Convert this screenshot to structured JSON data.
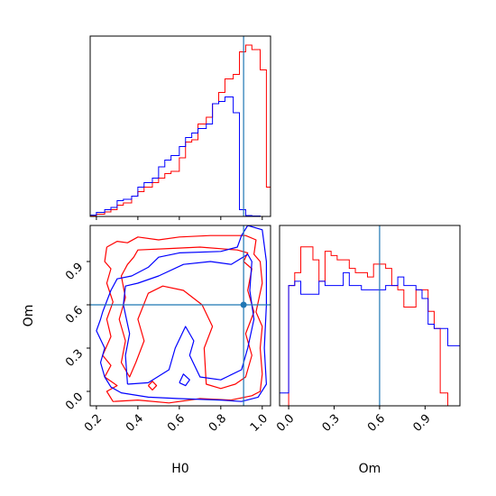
{
  "chart_data": {
    "type": "corner",
    "parameters": [
      "H0",
      "Om"
    ],
    "truth": {
      "H0": 0.91,
      "Om": 0.6
    },
    "colors": {
      "red": "#ff0000",
      "blue": "#0000ff",
      "truth": "#1f77b4"
    },
    "h0_hist": {
      "xlim": [
        0.17,
        1.04
      ],
      "xticks": [
        0.2,
        0.4,
        0.6,
        0.8,
        1.0
      ],
      "xticklabels": [
        "0.2",
        "0.4",
        "0.6",
        "0.8",
        "1.0"
      ],
      "bins": [
        0.17,
        0.2,
        0.24,
        0.27,
        0.3,
        0.33,
        0.37,
        0.4,
        0.43,
        0.47,
        0.5,
        0.53,
        0.56,
        0.6,
        0.63,
        0.66,
        0.69,
        0.73,
        0.76,
        0.79,
        0.82,
        0.86,
        0.89,
        0.92,
        0.95,
        0.99,
        1.02,
        1.04
      ],
      "series": [
        {
          "color": "red",
          "values": [
            0.2,
            0.5,
            1.0,
            1.5,
            2.5,
            3.0,
            4.5,
            5.5,
            6.5,
            7.5,
            8.5,
            9.5,
            10.0,
            13.0,
            16.5,
            17.0,
            20.5,
            22.0,
            25.0,
            27.5,
            30.5,
            31.5,
            36.5,
            38.0,
            37.0,
            32.5,
            6.5
          ]
        },
        {
          "color": "blue",
          "values": [
            0.3,
            0.9,
            1.5,
            2.0,
            3.5,
            3.8,
            4.5,
            6.5,
            7.5,
            8.5,
            11.0,
            12.5,
            13.5,
            15.5,
            17.5,
            18.5,
            19.5,
            20.5,
            25.0,
            25.5,
            26.5,
            23.0,
            1.5,
            0.2,
            0.1,
            0.0,
            0.0
          ]
        }
      ]
    },
    "om_hist": {
      "xlim": [
        -0.06,
        1.13
      ],
      "xticks": [
        0.0,
        0.3,
        0.6,
        0.9
      ],
      "xticklabels": [
        "0.0",
        "0.3",
        "0.6",
        "0.9"
      ],
      "bins": [
        -0.06,
        0.0,
        0.04,
        0.08,
        0.12,
        0.16,
        0.2,
        0.24,
        0.28,
        0.32,
        0.36,
        0.4,
        0.44,
        0.48,
        0.52,
        0.56,
        0.6,
        0.64,
        0.68,
        0.72,
        0.76,
        0.8,
        0.84,
        0.88,
        0.92,
        0.96,
        1.0,
        1.05,
        1.13
      ],
      "series": [
        {
          "color": "red",
          "values": [
            0,
            28,
            31,
            37,
            37,
            34,
            29,
            36,
            35,
            34,
            34,
            32,
            31,
            31,
            30,
            33,
            33,
            32,
            28,
            27,
            23,
            23,
            27,
            27,
            22,
            18,
            3,
            0
          ]
        },
        {
          "color": "blue",
          "values": [
            3,
            28,
            29,
            26,
            26,
            26,
            29,
            28,
            28,
            28,
            31,
            28,
            28,
            27,
            27,
            27,
            27,
            28,
            28,
            30,
            28,
            28,
            27,
            25,
            19,
            18,
            18,
            14
          ]
        }
      ]
    },
    "joint": {
      "xlabel": "H0",
      "ylabel": "Om",
      "xlim": [
        0.17,
        1.04
      ],
      "ylim": [
        -0.1,
        1.15
      ],
      "xticks": [
        0.2,
        0.4,
        0.6,
        0.8,
        1.0
      ],
      "xticklabels": [
        "0.2",
        "0.4",
        "0.6",
        "0.8",
        "1.0"
      ],
      "yticks": [
        0.0,
        0.3,
        0.6,
        0.9
      ],
      "yticklabels": [
        "0.0",
        "0.3",
        "0.6",
        "0.9"
      ],
      "contours": [
        {
          "color": "red",
          "points": [
            [
              0.25,
              1.0
            ],
            [
              0.3,
              1.04
            ],
            [
              0.35,
              1.03
            ],
            [
              0.4,
              1.07
            ],
            [
              0.5,
              1.05
            ],
            [
              0.6,
              1.07
            ],
            [
              0.75,
              1.08
            ],
            [
              0.92,
              1.08
            ],
            [
              0.97,
              1.05
            ],
            [
              0.96,
              0.95
            ],
            [
              0.99,
              0.9
            ],
            [
              1.0,
              0.75
            ],
            [
              0.97,
              0.55
            ],
            [
              1.0,
              0.45
            ],
            [
              0.99,
              0.3
            ],
            [
              1.0,
              0.12
            ],
            [
              0.99,
              0.0
            ],
            [
              0.95,
              -0.03
            ],
            [
              0.85,
              -0.06
            ],
            [
              0.7,
              -0.05
            ],
            [
              0.55,
              -0.08
            ],
            [
              0.4,
              -0.06
            ],
            [
              0.28,
              -0.07
            ],
            [
              0.25,
              0.0
            ],
            [
              0.3,
              0.04
            ],
            [
              0.24,
              0.1
            ],
            [
              0.27,
              0.18
            ],
            [
              0.23,
              0.25
            ],
            [
              0.27,
              0.38
            ],
            [
              0.25,
              0.5
            ],
            [
              0.28,
              0.62
            ],
            [
              0.25,
              0.75
            ],
            [
              0.27,
              0.85
            ],
            [
              0.24,
              0.9
            ],
            [
              0.25,
              1.0
            ]
          ]
        },
        {
          "color": "red",
          "points": [
            [
              0.38,
              0.93
            ],
            [
              0.4,
              0.98
            ],
            [
              0.55,
              0.99
            ],
            [
              0.7,
              1.0
            ],
            [
              0.88,
              0.98
            ],
            [
              0.93,
              0.96
            ],
            [
              0.91,
              0.9
            ],
            [
              0.95,
              0.85
            ],
            [
              0.93,
              0.7
            ],
            [
              0.96,
              0.55
            ],
            [
              0.92,
              0.4
            ],
            [
              0.95,
              0.25
            ],
            [
              0.92,
              0.1
            ],
            [
              0.87,
              0.05
            ],
            [
              0.8,
              0.02
            ],
            [
              0.73,
              0.05
            ],
            [
              0.72,
              0.3
            ],
            [
              0.76,
              0.45
            ],
            [
              0.71,
              0.6
            ],
            [
              0.62,
              0.7
            ],
            [
              0.52,
              0.73
            ],
            [
              0.45,
              0.68
            ],
            [
              0.4,
              0.5
            ],
            [
              0.43,
              0.35
            ],
            [
              0.39,
              0.2
            ],
            [
              0.36,
              0.1
            ],
            [
              0.32,
              0.2
            ],
            [
              0.34,
              0.35
            ],
            [
              0.31,
              0.5
            ],
            [
              0.34,
              0.65
            ],
            [
              0.32,
              0.8
            ],
            [
              0.35,
              0.88
            ],
            [
              0.38,
              0.93
            ]
          ]
        },
        {
          "color": "red",
          "points": [
            [
              0.45,
              0.04
            ],
            [
              0.47,
              0.07
            ],
            [
              0.49,
              0.04
            ],
            [
              0.47,
              0.01
            ],
            [
              0.45,
              0.04
            ]
          ]
        },
        {
          "color": "blue",
          "points": [
            [
              0.23,
              0.55
            ],
            [
              0.27,
              0.7
            ],
            [
              0.3,
              0.78
            ],
            [
              0.37,
              0.8
            ],
            [
              0.45,
              0.86
            ],
            [
              0.5,
              0.93
            ],
            [
              0.6,
              0.96
            ],
            [
              0.8,
              0.97
            ],
            [
              0.88,
              1.0
            ],
            [
              0.9,
              1.08
            ],
            [
              0.93,
              1.15
            ],
            [
              1.0,
              1.12
            ],
            [
              1.02,
              0.9
            ],
            [
              1.02,
              0.6
            ],
            [
              1.01,
              0.3
            ],
            [
              1.02,
              0.05
            ],
            [
              0.98,
              -0.04
            ],
            [
              0.9,
              -0.07
            ],
            [
              0.8,
              -0.06
            ],
            [
              0.6,
              -0.05
            ],
            [
              0.45,
              -0.04
            ],
            [
              0.32,
              -0.01
            ],
            [
              0.27,
              0.03
            ],
            [
              0.24,
              0.1
            ],
            [
              0.22,
              0.2
            ],
            [
              0.24,
              0.3
            ],
            [
              0.2,
              0.42
            ],
            [
              0.22,
              0.5
            ],
            [
              0.23,
              0.55
            ]
          ]
        },
        {
          "color": "blue",
          "points": [
            [
              0.35,
              0.05
            ],
            [
              0.34,
              0.25
            ],
            [
              0.36,
              0.4
            ],
            [
              0.33,
              0.6
            ],
            [
              0.34,
              0.73
            ],
            [
              0.4,
              0.75
            ],
            [
              0.5,
              0.8
            ],
            [
              0.62,
              0.88
            ],
            [
              0.75,
              0.9
            ],
            [
              0.85,
              0.88
            ],
            [
              0.93,
              0.95
            ],
            [
              0.95,
              0.9
            ],
            [
              0.94,
              0.7
            ],
            [
              0.96,
              0.5
            ],
            [
              0.93,
              0.3
            ],
            [
              0.9,
              0.15
            ],
            [
              0.8,
              0.08
            ],
            [
              0.7,
              0.1
            ],
            [
              0.65,
              0.25
            ],
            [
              0.67,
              0.35
            ],
            [
              0.63,
              0.45
            ],
            [
              0.58,
              0.3
            ],
            [
              0.55,
              0.15
            ],
            [
              0.45,
              0.06
            ],
            [
              0.35,
              0.05
            ]
          ]
        },
        {
          "color": "blue",
          "points": [
            [
              0.6,
              0.06
            ],
            [
              0.62,
              0.12
            ],
            [
              0.65,
              0.08
            ],
            [
              0.63,
              0.04
            ],
            [
              0.6,
              0.06
            ]
          ]
        }
      ]
    },
    "om_axis_label": "Om"
  }
}
